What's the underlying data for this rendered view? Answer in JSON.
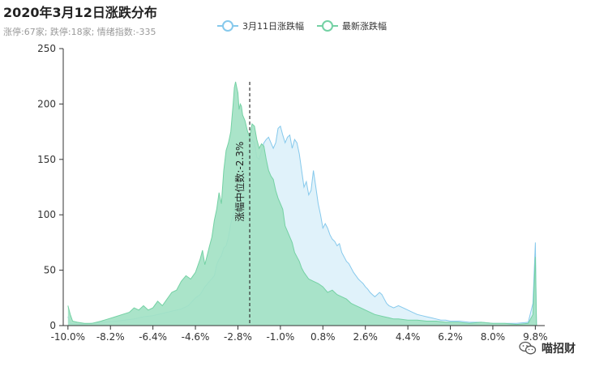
{
  "header": {
    "title": "2020年3月12日涨跌分布",
    "subtitle": "涨停:67家; 跌停:18家; 情绪指数:-335"
  },
  "watermark": {
    "text": "喵招财",
    "icon": "wechat-icon"
  },
  "chart_data": {
    "type": "area",
    "title": "2020年3月12日涨跌分布",
    "subtitle": "涨停:67家; 跌停:18家; 情绪指数:-335",
    "xlabel": "",
    "ylabel": "",
    "xlim": [
      -10.2,
      10.2
    ],
    "ylim": [
      0,
      250
    ],
    "x_ticks": [
      -10.0,
      -8.2,
      -6.4,
      -4.6,
      -2.8,
      -1.0,
      0.8,
      2.6,
      4.4,
      6.2,
      8.0,
      9.8
    ],
    "x_tick_labels": [
      "-10.0%",
      "-8.2%",
      "-6.4%",
      "-4.6%",
      "-2.8%",
      "-1.0%",
      "0.8%",
      "2.6%",
      "4.4%",
      "6.2%",
      "8.0%",
      "9.8%"
    ],
    "y_ticks": [
      0,
      50,
      100,
      150,
      200,
      250
    ],
    "y_tick_labels": [
      "0",
      "50",
      "100",
      "150",
      "200",
      "250"
    ],
    "legend_position": "top",
    "annotation": {
      "x": -2.3,
      "text": "涨幅中位数:-2.3%"
    },
    "series": [
      {
        "name": "3月11日涨跌幅",
        "color": "#86c9ec",
        "fill": "#def1fa",
        "points": [
          [
            -10.0,
            8
          ],
          [
            -9.9,
            2
          ],
          [
            -9.5,
            1
          ],
          [
            -9.0,
            2
          ],
          [
            -8.5,
            3
          ],
          [
            -8.0,
            4
          ],
          [
            -7.6,
            5
          ],
          [
            -7.2,
            6
          ],
          [
            -6.8,
            8
          ],
          [
            -6.4,
            9
          ],
          [
            -6.0,
            11
          ],
          [
            -5.6,
            13
          ],
          [
            -5.2,
            15
          ],
          [
            -4.9,
            18
          ],
          [
            -4.6,
            25
          ],
          [
            -4.4,
            28
          ],
          [
            -4.2,
            35
          ],
          [
            -4.0,
            40
          ],
          [
            -3.8,
            45
          ],
          [
            -3.7,
            55
          ],
          [
            -3.6,
            60
          ],
          [
            -3.5,
            63
          ],
          [
            -3.4,
            70
          ],
          [
            -3.3,
            72
          ],
          [
            -3.2,
            80
          ],
          [
            -3.1,
            92
          ],
          [
            -3.0,
            100
          ],
          [
            -2.9,
            110
          ],
          [
            -2.8,
            118
          ],
          [
            -2.7,
            125
          ],
          [
            -2.6,
            135
          ],
          [
            -2.5,
            148
          ],
          [
            -2.4,
            155
          ],
          [
            -2.3,
            162
          ],
          [
            -2.2,
            168
          ],
          [
            -2.1,
            165
          ],
          [
            -2.0,
            152
          ],
          [
            -1.9,
            150
          ],
          [
            -1.8,
            158
          ],
          [
            -1.7,
            165
          ],
          [
            -1.6,
            168
          ],
          [
            -1.5,
            170
          ],
          [
            -1.4,
            165
          ],
          [
            -1.3,
            160
          ],
          [
            -1.2,
            165
          ],
          [
            -1.1,
            178
          ],
          [
            -1.0,
            180
          ],
          [
            -0.9,
            172
          ],
          [
            -0.8,
            165
          ],
          [
            -0.7,
            170
          ],
          [
            -0.6,
            172
          ],
          [
            -0.5,
            160
          ],
          [
            -0.4,
            168
          ],
          [
            -0.3,
            165
          ],
          [
            -0.2,
            155
          ],
          [
            -0.1,
            140
          ],
          [
            0.0,
            125
          ],
          [
            0.1,
            130
          ],
          [
            0.2,
            118
          ],
          [
            0.3,
            122
          ],
          [
            0.4,
            140
          ],
          [
            0.5,
            125
          ],
          [
            0.6,
            110
          ],
          [
            0.7,
            100
          ],
          [
            0.8,
            88
          ],
          [
            0.9,
            92
          ],
          [
            1.0,
            88
          ],
          [
            1.1,
            82
          ],
          [
            1.2,
            78
          ],
          [
            1.3,
            76
          ],
          [
            1.4,
            72
          ],
          [
            1.5,
            74
          ],
          [
            1.6,
            66
          ],
          [
            1.7,
            62
          ],
          [
            1.8,
            58
          ],
          [
            1.9,
            56
          ],
          [
            2.0,
            52
          ],
          [
            2.1,
            48
          ],
          [
            2.2,
            45
          ],
          [
            2.3,
            42
          ],
          [
            2.4,
            40
          ],
          [
            2.5,
            38
          ],
          [
            2.6,
            35
          ],
          [
            2.7,
            33
          ],
          [
            2.8,
            30
          ],
          [
            2.9,
            28
          ],
          [
            3.0,
            26
          ],
          [
            3.1,
            28
          ],
          [
            3.2,
            30
          ],
          [
            3.3,
            28
          ],
          [
            3.4,
            24
          ],
          [
            3.5,
            20
          ],
          [
            3.6,
            18
          ],
          [
            3.8,
            16
          ],
          [
            4.0,
            18
          ],
          [
            4.2,
            16
          ],
          [
            4.4,
            14
          ],
          [
            4.6,
            12
          ],
          [
            4.8,
            10
          ],
          [
            5.0,
            9
          ],
          [
            5.2,
            8
          ],
          [
            5.4,
            7
          ],
          [
            5.6,
            6
          ],
          [
            5.8,
            5
          ],
          [
            6.0,
            5
          ],
          [
            6.2,
            4
          ],
          [
            6.6,
            4
          ],
          [
            7.0,
            3
          ],
          [
            7.5,
            3
          ],
          [
            8.0,
            2
          ],
          [
            8.5,
            2
          ],
          [
            9.0,
            2
          ],
          [
            9.5,
            3
          ],
          [
            9.7,
            20
          ],
          [
            9.8,
            75
          ],
          [
            9.85,
            0
          ]
        ]
      },
      {
        "name": "最新涨跌幅",
        "color": "#74d1a4",
        "fill": "#a3e2c4",
        "points": [
          [
            -10.0,
            18
          ],
          [
            -9.9,
            10
          ],
          [
            -9.8,
            4
          ],
          [
            -9.6,
            3
          ],
          [
            -9.3,
            2
          ],
          [
            -9.0,
            2
          ],
          [
            -8.6,
            4
          ],
          [
            -8.3,
            6
          ],
          [
            -8.0,
            8
          ],
          [
            -7.7,
            10
          ],
          [
            -7.4,
            12
          ],
          [
            -7.2,
            16
          ],
          [
            -7.0,
            14
          ],
          [
            -6.8,
            18
          ],
          [
            -6.6,
            14
          ],
          [
            -6.4,
            16
          ],
          [
            -6.2,
            22
          ],
          [
            -6.0,
            18
          ],
          [
            -5.8,
            24
          ],
          [
            -5.6,
            30
          ],
          [
            -5.4,
            32
          ],
          [
            -5.2,
            40
          ],
          [
            -5.0,
            45
          ],
          [
            -4.8,
            42
          ],
          [
            -4.6,
            48
          ],
          [
            -4.4,
            60
          ],
          [
            -4.3,
            68
          ],
          [
            -4.2,
            55
          ],
          [
            -4.0,
            72
          ],
          [
            -3.9,
            80
          ],
          [
            -3.8,
            95
          ],
          [
            -3.7,
            105
          ],
          [
            -3.6,
            120
          ],
          [
            -3.5,
            110
          ],
          [
            -3.4,
            140
          ],
          [
            -3.3,
            158
          ],
          [
            -3.2,
            165
          ],
          [
            -3.1,
            175
          ],
          [
            -3.0,
            200
          ],
          [
            -2.95,
            215
          ],
          [
            -2.9,
            220
          ],
          [
            -2.85,
            215
          ],
          [
            -2.8,
            210
          ],
          [
            -2.75,
            195
          ],
          [
            -2.7,
            200
          ],
          [
            -2.65,
            198
          ],
          [
            -2.6,
            190
          ],
          [
            -2.5,
            185
          ],
          [
            -2.4,
            176
          ],
          [
            -2.3,
            170
          ],
          [
            -2.2,
            182
          ],
          [
            -2.1,
            180
          ],
          [
            -2.0,
            168
          ],
          [
            -1.9,
            160
          ],
          [
            -1.8,
            164
          ],
          [
            -1.7,
            162
          ],
          [
            -1.6,
            150
          ],
          [
            -1.5,
            140
          ],
          [
            -1.4,
            135
          ],
          [
            -1.3,
            132
          ],
          [
            -1.2,
            122
          ],
          [
            -1.1,
            115
          ],
          [
            -1.0,
            110
          ],
          [
            -0.9,
            105
          ],
          [
            -0.8,
            90
          ],
          [
            -0.7,
            85
          ],
          [
            -0.6,
            80
          ],
          [
            -0.5,
            75
          ],
          [
            -0.4,
            66
          ],
          [
            -0.3,
            62
          ],
          [
            -0.2,
            58
          ],
          [
            -0.1,
            52
          ],
          [
            0.0,
            48
          ],
          [
            0.2,
            42
          ],
          [
            0.4,
            40
          ],
          [
            0.6,
            38
          ],
          [
            0.8,
            35
          ],
          [
            1.0,
            30
          ],
          [
            1.2,
            32
          ],
          [
            1.4,
            28
          ],
          [
            1.6,
            26
          ],
          [
            1.8,
            24
          ],
          [
            2.0,
            20
          ],
          [
            2.2,
            18
          ],
          [
            2.4,
            16
          ],
          [
            2.6,
            14
          ],
          [
            2.8,
            12
          ],
          [
            3.0,
            10
          ],
          [
            3.2,
            9
          ],
          [
            3.4,
            8
          ],
          [
            3.6,
            7
          ],
          [
            3.8,
            6
          ],
          [
            4.0,
            6
          ],
          [
            4.4,
            5
          ],
          [
            4.8,
            5
          ],
          [
            5.2,
            4
          ],
          [
            5.6,
            4
          ],
          [
            6.0,
            3
          ],
          [
            6.5,
            3
          ],
          [
            7.0,
            2
          ],
          [
            7.5,
            3
          ],
          [
            8.0,
            2
          ],
          [
            8.5,
            2
          ],
          [
            9.0,
            1
          ],
          [
            9.5,
            2
          ],
          [
            9.7,
            10
          ],
          [
            9.8,
            62
          ],
          [
            9.85,
            0
          ]
        ]
      }
    ]
  }
}
